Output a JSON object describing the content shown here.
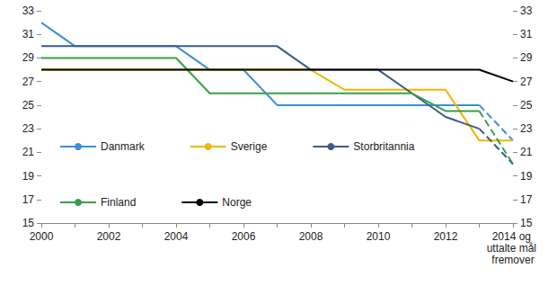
{
  "chart_data": {
    "type": "line",
    "categories": [
      "2000",
      null,
      "2002",
      null,
      "2004",
      null,
      "2006",
      null,
      "2008",
      null,
      "2010",
      null,
      "2012",
      null,
      "2014 og uttalte mål fremover"
    ],
    "series": [
      {
        "name": "Danmark",
        "color": "#3b8ed8",
        "line_style": "solid",
        "values": [
          32,
          30,
          30,
          30,
          30,
          28,
          28,
          25,
          25,
          25,
          25,
          25,
          25,
          25,
          null
        ]
      },
      {
        "name": "Danmark",
        "color": "#3b8ed8",
        "line_style": "dashed",
        "values": [
          null,
          null,
          null,
          null,
          null,
          null,
          null,
          null,
          null,
          null,
          null,
          null,
          null,
          25,
          22
        ]
      },
      {
        "name": "Sverige",
        "color": "#f2b600",
        "line_style": "solid",
        "values": [
          28,
          28,
          28,
          28,
          28,
          28,
          28,
          28,
          28,
          26.3,
          26.3,
          26.3,
          26.3,
          22,
          22
        ]
      },
      {
        "name": "Storbritannia",
        "color": "#3d5a8a",
        "line_style": "solid",
        "values": [
          30,
          30,
          30,
          30,
          30,
          30,
          30,
          30,
          28,
          28,
          28,
          26,
          24,
          23,
          null
        ]
      },
      {
        "name": "Storbritannia",
        "color": "#3d5a8a",
        "line_style": "dashed",
        "values": [
          null,
          null,
          null,
          null,
          null,
          null,
          null,
          null,
          null,
          null,
          null,
          null,
          null,
          23,
          20
        ]
      },
      {
        "name": "Finland",
        "color": "#3a9e48",
        "line_style": "solid",
        "values": [
          29,
          29,
          29,
          29,
          29,
          26,
          26,
          26,
          26,
          26,
          26,
          26,
          24.5,
          24.5,
          null
        ]
      },
      {
        "name": "Finland",
        "color": "#3a9e48",
        "line_style": "dashed",
        "values": [
          null,
          null,
          null,
          null,
          null,
          null,
          null,
          null,
          null,
          null,
          null,
          null,
          null,
          24.5,
          20
        ]
      },
      {
        "name": "Norge",
        "color": "#000000",
        "line_style": "solid",
        "values": [
          28,
          28,
          28,
          28,
          28,
          28,
          28,
          28,
          28,
          28,
          28,
          28,
          28,
          28,
          27
        ]
      }
    ],
    "ylim": [
      15,
      33
    ],
    "yticks": [
      15,
      17,
      19,
      21,
      23,
      25,
      27,
      29,
      31,
      33
    ],
    "y2lim": [
      15,
      33
    ],
    "y2ticks": [
      15,
      17,
      19,
      21,
      23,
      25,
      27,
      29,
      31,
      33
    ],
    "grid": false,
    "legend": "lower left"
  }
}
